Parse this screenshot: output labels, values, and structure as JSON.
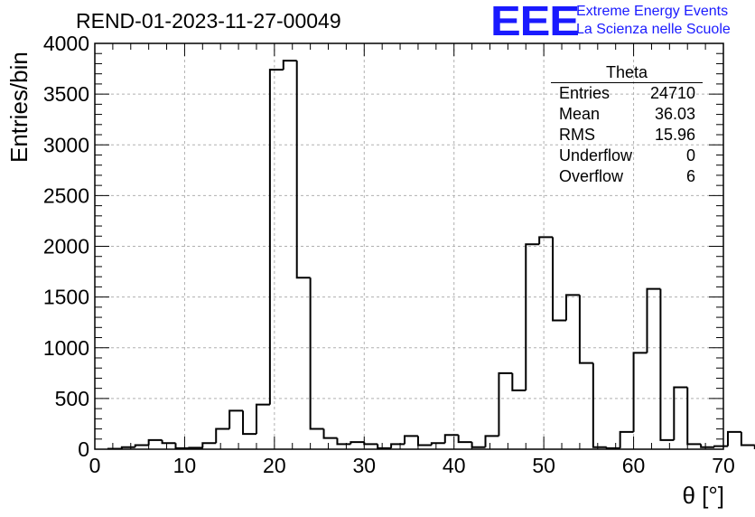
{
  "title": "REND-01-2023-11-27-00049",
  "logo": {
    "mark": "EEE",
    "line1": "Extreme Energy Events",
    "line2": "La Scienza nelle Scuole",
    "color": "#1a1aff"
  },
  "stats_box": {
    "name": "Theta",
    "rows": [
      {
        "label": "Entries",
        "value": "24710"
      },
      {
        "label": "Mean",
        "value": "36.03"
      },
      {
        "label": "RMS",
        "value": "15.96"
      },
      {
        "label": "Underflow",
        "value": "0"
      },
      {
        "label": "Overflow",
        "value": "6"
      }
    ]
  },
  "chart_data": {
    "type": "bar",
    "style": "step-histogram",
    "xlabel": "θ [°]",
    "ylabel": "Entries/bin",
    "xlim": [
      0,
      70
    ],
    "ylim": [
      0,
      4000
    ],
    "grid": true,
    "bin_width": 1.5,
    "x_start": 1.5,
    "values": [
      5,
      20,
      40,
      90,
      60,
      10,
      15,
      60,
      200,
      380,
      150,
      440,
      3740,
      3830,
      1690,
      200,
      110,
      50,
      70,
      50,
      10,
      50,
      130,
      40,
      60,
      140,
      70,
      20,
      130,
      750,
      580,
      2020,
      2090,
      1270,
      1520,
      850,
      20,
      10,
      170,
      950,
      1580,
      90,
      610,
      50,
      20,
      30,
      170,
      40
    ],
    "x_ticks": [
      "0",
      "10",
      "20",
      "30",
      "40",
      "50",
      "60",
      "70"
    ],
    "y_ticks": [
      "0",
      "500",
      "1000",
      "1500",
      "2000",
      "2500",
      "3000",
      "3500",
      "4000"
    ]
  }
}
